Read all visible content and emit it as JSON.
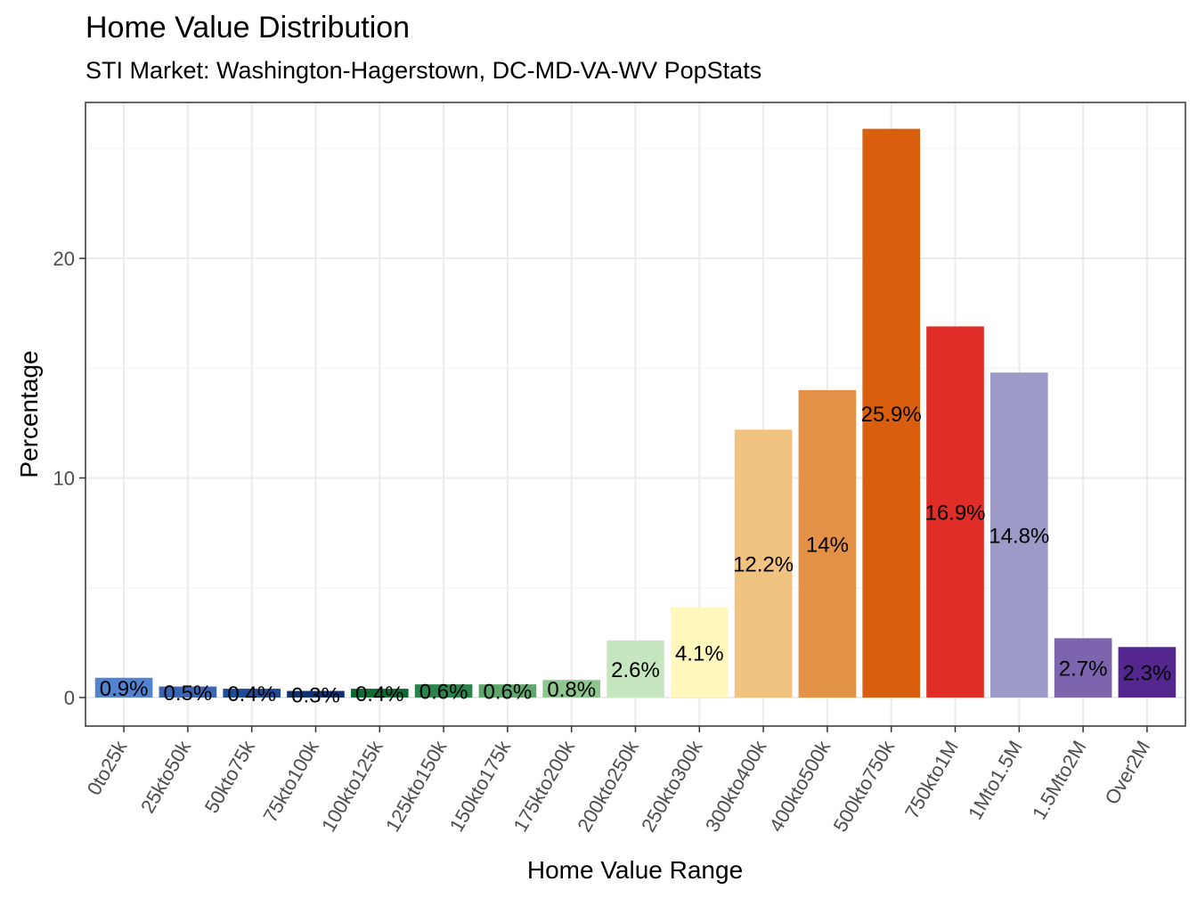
{
  "chart_data": {
    "type": "bar",
    "title": "Home Value Distribution",
    "subtitle": "STI Market: Washington-Hagerstown, DC-MD-VA-WV PopStats",
    "xlabel": "Home Value Range",
    "ylabel": "Percentage",
    "ylim": [
      -1.3,
      27.1
    ],
    "yticks": [
      0,
      10,
      20
    ],
    "ytick_labels": [
      "0",
      "10",
      "20"
    ],
    "grid": true,
    "legend": "none",
    "categories": [
      "0to25k",
      "25kto50k",
      "50kto75k",
      "75kto100k",
      "100kto125k",
      "125kto150k",
      "150kto175k",
      "175kto200k",
      "200kto250k",
      "250kto300k",
      "300kto400k",
      "400kto500k",
      "500kto750k",
      "750kto1M",
      "1Mto1.5M",
      "1.5Mto2M",
      "Over2M"
    ],
    "values": [
      0.9,
      0.5,
      0.4,
      0.3,
      0.4,
      0.6,
      0.6,
      0.8,
      2.6,
      4.1,
      12.2,
      14.0,
      25.9,
      16.9,
      14.8,
      2.7,
      2.3
    ],
    "data_labels": [
      "0.9%",
      "0.5%",
      "0.4%",
      "0.3%",
      "0.4%",
      "0.6%",
      "0.6%",
      "0.8%",
      "2.6%",
      "4.1%",
      "12.2%",
      "14%",
      "25.9%",
      "16.9%",
      "14.8%",
      "2.7%",
      "2.3%"
    ],
    "colors": [
      "#5283d1",
      "#3a65b5",
      "#1f4a97",
      "#0f3273",
      "#0e6a34",
      "#2b854a",
      "#5ea66a",
      "#8fc58f",
      "#c6e6bf",
      "#fff7bc",
      "#f1c380",
      "#e39146",
      "#d95f0e",
      "#e02d27",
      "#9e9ac8",
      "#7c64ae",
      "#54278f"
    ]
  }
}
